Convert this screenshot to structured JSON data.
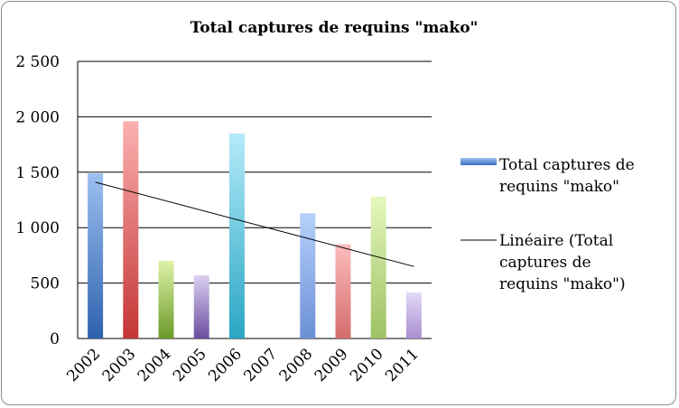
{
  "chart_data": {
    "type": "bar",
    "title": "Total captures de requins \"mako\"",
    "xlabel": "",
    "ylabel": "",
    "categories": [
      "2002",
      "2003",
      "2004",
      "2005",
      "2006",
      "2007",
      "2008",
      "2009",
      "2010",
      "2011"
    ],
    "series": [
      {
        "name": "Total captures de requins \"mako\"",
        "values": [
          1490,
          1960,
          700,
          570,
          1850,
          0,
          1130,
          850,
          1280,
          415
        ]
      }
    ],
    "trendline": {
      "name": "Linéaire (Total captures de requins \"mako\")",
      "type": "linear",
      "start": 1410,
      "end": 650
    },
    "ylim": [
      0,
      2500
    ],
    "yticks": [
      0,
      500,
      1000,
      1500,
      2000,
      2500
    ],
    "ytick_labels": [
      "0",
      "500",
      "1 000",
      "1 500",
      "2 000",
      "2 500"
    ],
    "grid": true,
    "legend_position": "right",
    "colors": {
      "bars": [
        [
          "#9dc0f0",
          "#2e62ae"
        ],
        [
          "#fbb0b0",
          "#c43535"
        ],
        [
          "#dff3a8",
          "#6b9a29"
        ],
        [
          "#dbcff0",
          "#6a4e9e"
        ],
        [
          "#b4eaf9",
          "#2aa6c4"
        ],
        [
          "#c9dcf5",
          "#5b7fc4"
        ],
        [
          "#b6d1fb",
          "#6b8fd6"
        ],
        [
          "#fcbcbc",
          "#d56c6c"
        ],
        [
          "#e6f8bd",
          "#9cc162"
        ],
        [
          "#e4d9f6",
          "#a88fd0"
        ]
      ],
      "trendline": "#000000",
      "gridline": "#000000"
    }
  }
}
